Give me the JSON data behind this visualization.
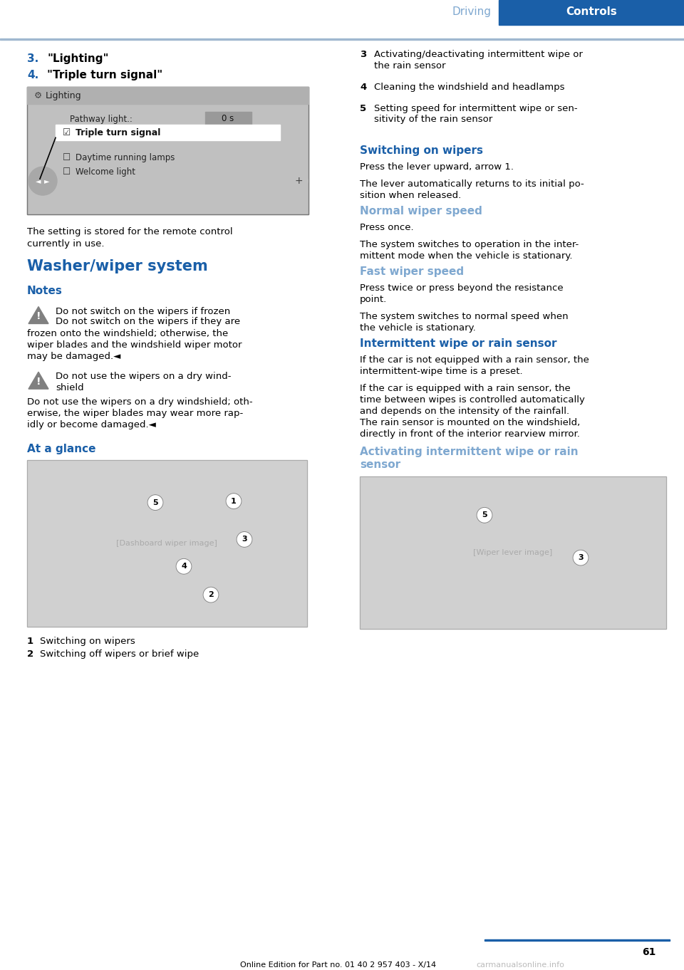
{
  "page_width": 9.6,
  "page_height": 13.62,
  "bg_color": "#ffffff",
  "blue_accent": "#1a5fa8",
  "header_driving_color": "#7fa8d0",
  "divider_color": "#a0b8d0",
  "list_items": [
    {
      "num": "3.",
      "text": "\"Lighting\""
    },
    {
      "num": "4.",
      "text": "\"Triple turn signal\""
    }
  ],
  "screen_caption": "The setting is stored for the remote control\ncurrently in use.",
  "section_title": "Washer/wiper system",
  "notes_title": "Notes",
  "warning_text1a": "Do not switch on the wipers if frozen",
  "warning_text1b": "Do not switch on the wipers if they are\nfrozen onto the windshield; otherwise, the\nwiper blades and the windshield wiper motor\nmay be damaged.◄",
  "warning_text2a": "Do not use the wipers on a dry wind-\nshield",
  "warning_text2b": "Do not use the wipers on a dry windshield; oth-\nerwise, the wiper blades may wear more rap-\nidly or become damaged.◄",
  "at_glance_title": "At a glance",
  "caption1_num": "1",
  "caption1_text": "Switching on wipers",
  "caption2_num": "2",
  "caption2_text": "Switching off wipers or brief wipe",
  "right_items": [
    {
      "num": "3",
      "text": "Activating/deactivating intermittent wipe or\nthe rain sensor"
    },
    {
      "num": "4",
      "text": "Cleaning the windshield and headlamps"
    },
    {
      "num": "5",
      "text": "Setting speed for intermittent wipe or sen-\nsitivity of the rain sensor"
    }
  ],
  "switching_on_title": "Switching on wipers",
  "switching_on_text": "Press the lever upward, arrow 1.\n\nThe lever automatically returns to its initial po-\nsition when released.",
  "normal_wiper_title": "Normal wiper speed",
  "normal_wiper_text": "Press once.\n\nThe system switches to operation in the inter-\nmittent mode when the vehicle is stationary.",
  "fast_wiper_title": "Fast wiper speed",
  "fast_wiper_text": "Press twice or press beyond the resistance\npoint.\n\nThe system switches to normal speed when\nthe vehicle is stationary.",
  "intermittent_title": "Intermittent wipe or rain sensor",
  "intermittent_text": "If the car is not equipped with a rain sensor, the\nintermittent-wipe time is a preset.\n\nIf the car is equipped with a rain sensor, the\ntime between wipes is controlled automatically\nand depends on the intensity of the rainfall.\nThe rain sensor is mounted on the windshield,\ndirectly in front of the interior rearview mirror.",
  "activating_title_line1": "Activating intermittent wipe or rain",
  "activating_title_line2": "sensor",
  "header_text_driving": "Driving",
  "header_text_controls": "Controls",
  "page_number": "61",
  "footer_text": "Online Edition for Part no. 01 40 2 957 403 - X/14",
  "footer_watermark": "carmanualsonline.info"
}
